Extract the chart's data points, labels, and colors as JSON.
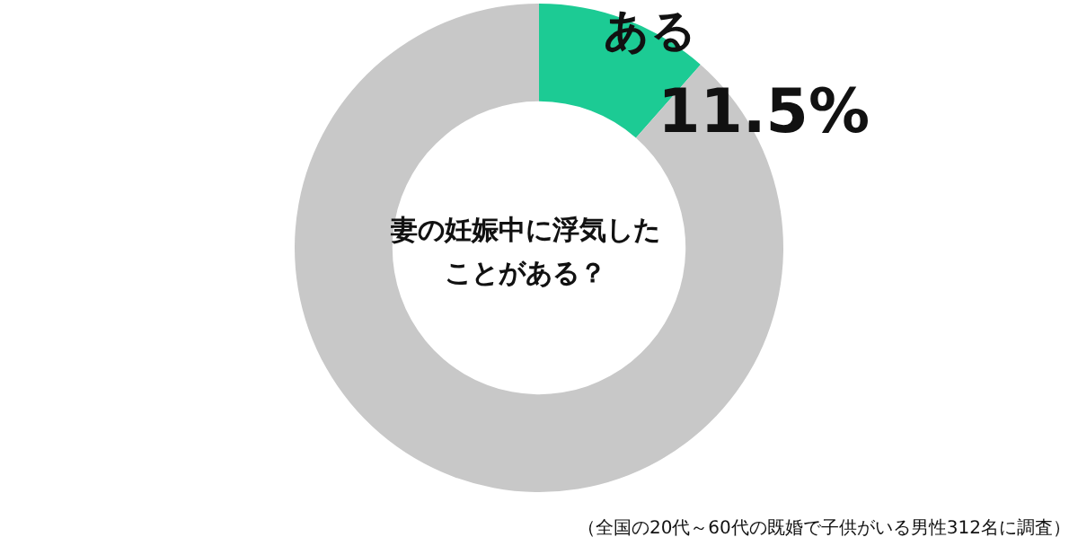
{
  "chart_data": {
    "type": "donut",
    "title": "妻の妊娠中に浮気したことがある？",
    "categories": [
      "ある",
      null
    ],
    "values": [
      11.5,
      88.5
    ],
    "value_labels": [
      "11.5%",
      null
    ],
    "colors": [
      "#1ccb94",
      "#c8c8c8"
    ],
    "annotations": [
      "（全国の20代～60代の既婚で子供がいる男性312名に調査）"
    ]
  }
}
